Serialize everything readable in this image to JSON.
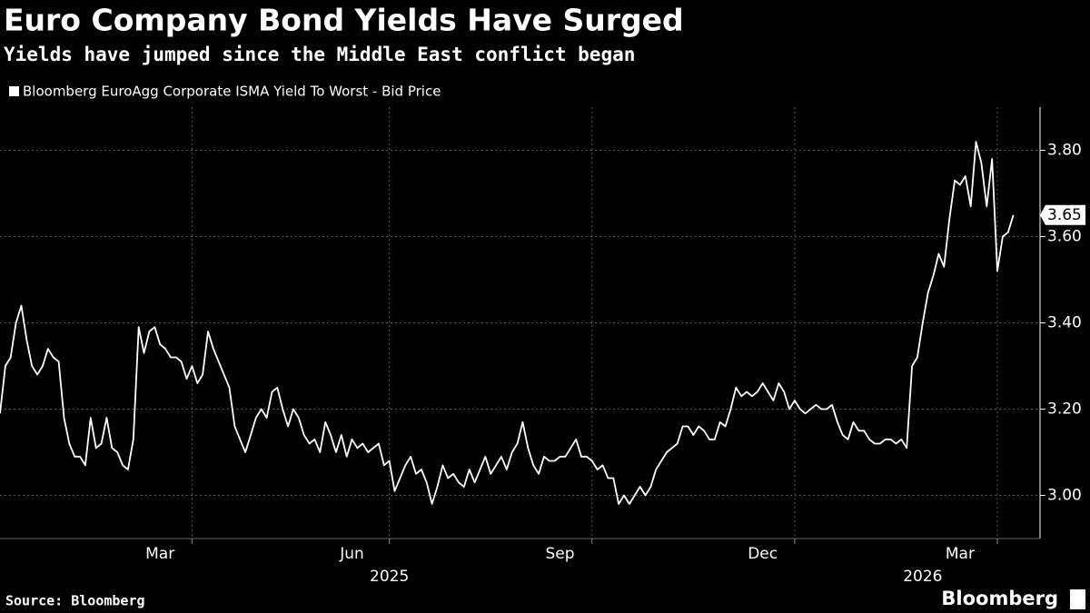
{
  "chart_data": {
    "type": "line",
    "title": "Euro Company Bond Yields Have Surged",
    "subtitle": "Yields have jumped since the Middle East conflict began",
    "source": "Source: Bloomberg",
    "brand": "Bloomberg",
    "series": [
      {
        "name": "Bloomberg EuroAgg Corporate ISMA Yield To Worst - Bid Price",
        "color": "#ffffff",
        "values": [
          3.19,
          3.3,
          3.32,
          3.4,
          3.44,
          3.36,
          3.3,
          3.28,
          3.3,
          3.34,
          3.32,
          3.31,
          3.18,
          3.12,
          3.09,
          3.09,
          3.07,
          3.18,
          3.11,
          3.12,
          3.18,
          3.11,
          3.1,
          3.07,
          3.06,
          3.13,
          3.39,
          3.33,
          3.38,
          3.39,
          3.35,
          3.34,
          3.32,
          3.32,
          3.31,
          3.27,
          3.3,
          3.26,
          3.28,
          3.38,
          3.34,
          3.31,
          3.28,
          3.25,
          3.16,
          3.13,
          3.1,
          3.14,
          3.18,
          3.2,
          3.18,
          3.24,
          3.25,
          3.2,
          3.16,
          3.2,
          3.18,
          3.14,
          3.12,
          3.13,
          3.1,
          3.17,
          3.14,
          3.1,
          3.14,
          3.09,
          3.13,
          3.11,
          3.12,
          3.1,
          3.11,
          3.12,
          3.07,
          3.08,
          3.01,
          3.04,
          3.07,
          3.09,
          3.05,
          3.06,
          3.03,
          2.98,
          3.02,
          3.07,
          3.04,
          3.05,
          3.03,
          3.02,
          3.06,
          3.03,
          3.06,
          3.09,
          3.05,
          3.07,
          3.09,
          3.06,
          3.1,
          3.12,
          3.17,
          3.11,
          3.07,
          3.05,
          3.09,
          3.08,
          3.08,
          3.09,
          3.09,
          3.11,
          3.13,
          3.09,
          3.09,
          3.08,
          3.06,
          3.07,
          3.04,
          3.04,
          2.98,
          3.0,
          2.98,
          3.0,
          3.02,
          3.0,
          3.02,
          3.06,
          3.08,
          3.1,
          3.11,
          3.12,
          3.16,
          3.16,
          3.14,
          3.16,
          3.15,
          3.13,
          3.13,
          3.17,
          3.16,
          3.2,
          3.25,
          3.23,
          3.24,
          3.23,
          3.24,
          3.26,
          3.24,
          3.22,
          3.26,
          3.24,
          3.2,
          3.22,
          3.2,
          3.19,
          3.2,
          3.21,
          3.2,
          3.2,
          3.21,
          3.17,
          3.14,
          3.13,
          3.17,
          3.15,
          3.15,
          3.13,
          3.12,
          3.12,
          3.13,
          3.13,
          3.12,
          3.13,
          3.11,
          3.3,
          3.32,
          3.4,
          3.47,
          3.51,
          3.56,
          3.53,
          3.64,
          3.73,
          3.72,
          3.74,
          3.67,
          3.82,
          3.77,
          3.67,
          3.78,
          3.52,
          3.6,
          3.61,
          3.65
        ]
      }
    ],
    "xlim": [
      0,
      195
    ],
    "xticks": [
      {
        "value": 30,
        "label": "Mar"
      },
      {
        "value": 66,
        "label": "Jun"
      },
      {
        "value": 105,
        "label": "Sep"
      },
      {
        "value": 143,
        "label": "Dec"
      },
      {
        "value": 180,
        "label": "Mar"
      }
    ],
    "year_labels": [
      {
        "value": 73,
        "label": "2025"
      },
      {
        "value": 173,
        "label": "2026"
      }
    ],
    "xgrid": [
      36,
      73,
      111,
      149,
      187
    ],
    "ylim": [
      2.9,
      3.9
    ],
    "yticks": [
      {
        "value": 3,
        "label": "3.00"
      },
      {
        "value": 3.2,
        "label": "3.20"
      },
      {
        "value": 3.4,
        "label": "3.40"
      },
      {
        "value": 3.6,
        "label": "3.60"
      },
      {
        "value": 3.8,
        "label": "3.80"
      }
    ],
    "grid": true
  }
}
